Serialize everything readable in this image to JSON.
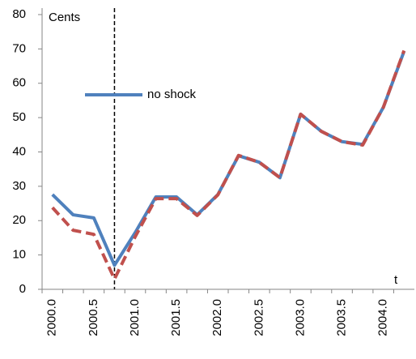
{
  "chart_data": {
    "type": "line",
    "y_label": "Cents",
    "x_label": "t",
    "categories": [
      "2000.0",
      null,
      "2000.5",
      null,
      "2001.0",
      null,
      "2001.5",
      null,
      "2002.0",
      null,
      "2002.5",
      null,
      "2003.0",
      null,
      "2003.5",
      null,
      "2004.0",
      null
    ],
    "series": [
      {
        "name": "no shock",
        "color": "#4f81bd",
        "dash": false,
        "values": [
          27.6,
          21.7,
          20.8,
          7,
          16.5,
          26.9,
          26.9,
          21.7,
          27.6,
          38.9,
          37,
          32.5,
          51,
          46,
          43,
          42.2,
          53,
          69.3
        ]
      },
      {
        "color": "#c0504d",
        "dash": true,
        "values": [
          23.8,
          17.2,
          16,
          3,
          15.3,
          26.4,
          26.4,
          21.5,
          27.5,
          39,
          37,
          32.5,
          51,
          46,
          43,
          42,
          53,
          69.5
        ]
      }
    ],
    "vline": 3,
    "ylim": [
      0,
      80
    ],
    "yticks": [
      0,
      10,
      20,
      30,
      40,
      50,
      60,
      70,
      80
    ],
    "grid": false
  }
}
